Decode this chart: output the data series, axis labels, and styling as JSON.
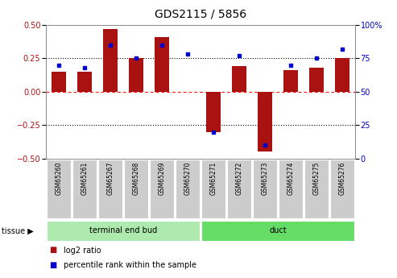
{
  "title": "GDS2115 / 5856",
  "samples": [
    "GSM65260",
    "GSM65261",
    "GSM65267",
    "GSM65268",
    "GSM65269",
    "GSM65270",
    "GSM65271",
    "GSM65272",
    "GSM65273",
    "GSM65274",
    "GSM65275",
    "GSM65276"
  ],
  "log2_ratio": [
    0.15,
    0.15,
    0.47,
    0.25,
    0.41,
    0.0,
    -0.3,
    0.19,
    -0.45,
    0.16,
    0.18,
    0.25
  ],
  "percentile_rank": [
    70,
    68,
    85,
    75,
    85,
    78,
    20,
    77,
    10,
    70,
    75,
    82
  ],
  "bar_color": "#aa1111",
  "dot_color": "#0000cc",
  "ylim_left": [
    -0.5,
    0.5
  ],
  "ylim_right": [
    0,
    100
  ],
  "yticks_left": [
    -0.5,
    -0.25,
    0,
    0.25,
    0.5
  ],
  "yticks_right": [
    0,
    25,
    50,
    75,
    100
  ],
  "tissue_groups": [
    {
      "label": "terminal end bud",
      "start": 0,
      "end": 5,
      "color": "#aeeaae"
    },
    {
      "label": "duct",
      "start": 6,
      "end": 11,
      "color": "#66dd66"
    }
  ],
  "tissue_label": "tissue",
  "legend_items": [
    {
      "color": "#aa1111",
      "label": "log2 ratio"
    },
    {
      "color": "#0000cc",
      "label": "percentile rank within the sample"
    }
  ],
  "background_color": "#ffffff",
  "bar_width": 0.55,
  "title_fontsize": 10,
  "tick_fontsize": 7,
  "sample_fontsize": 5.5
}
